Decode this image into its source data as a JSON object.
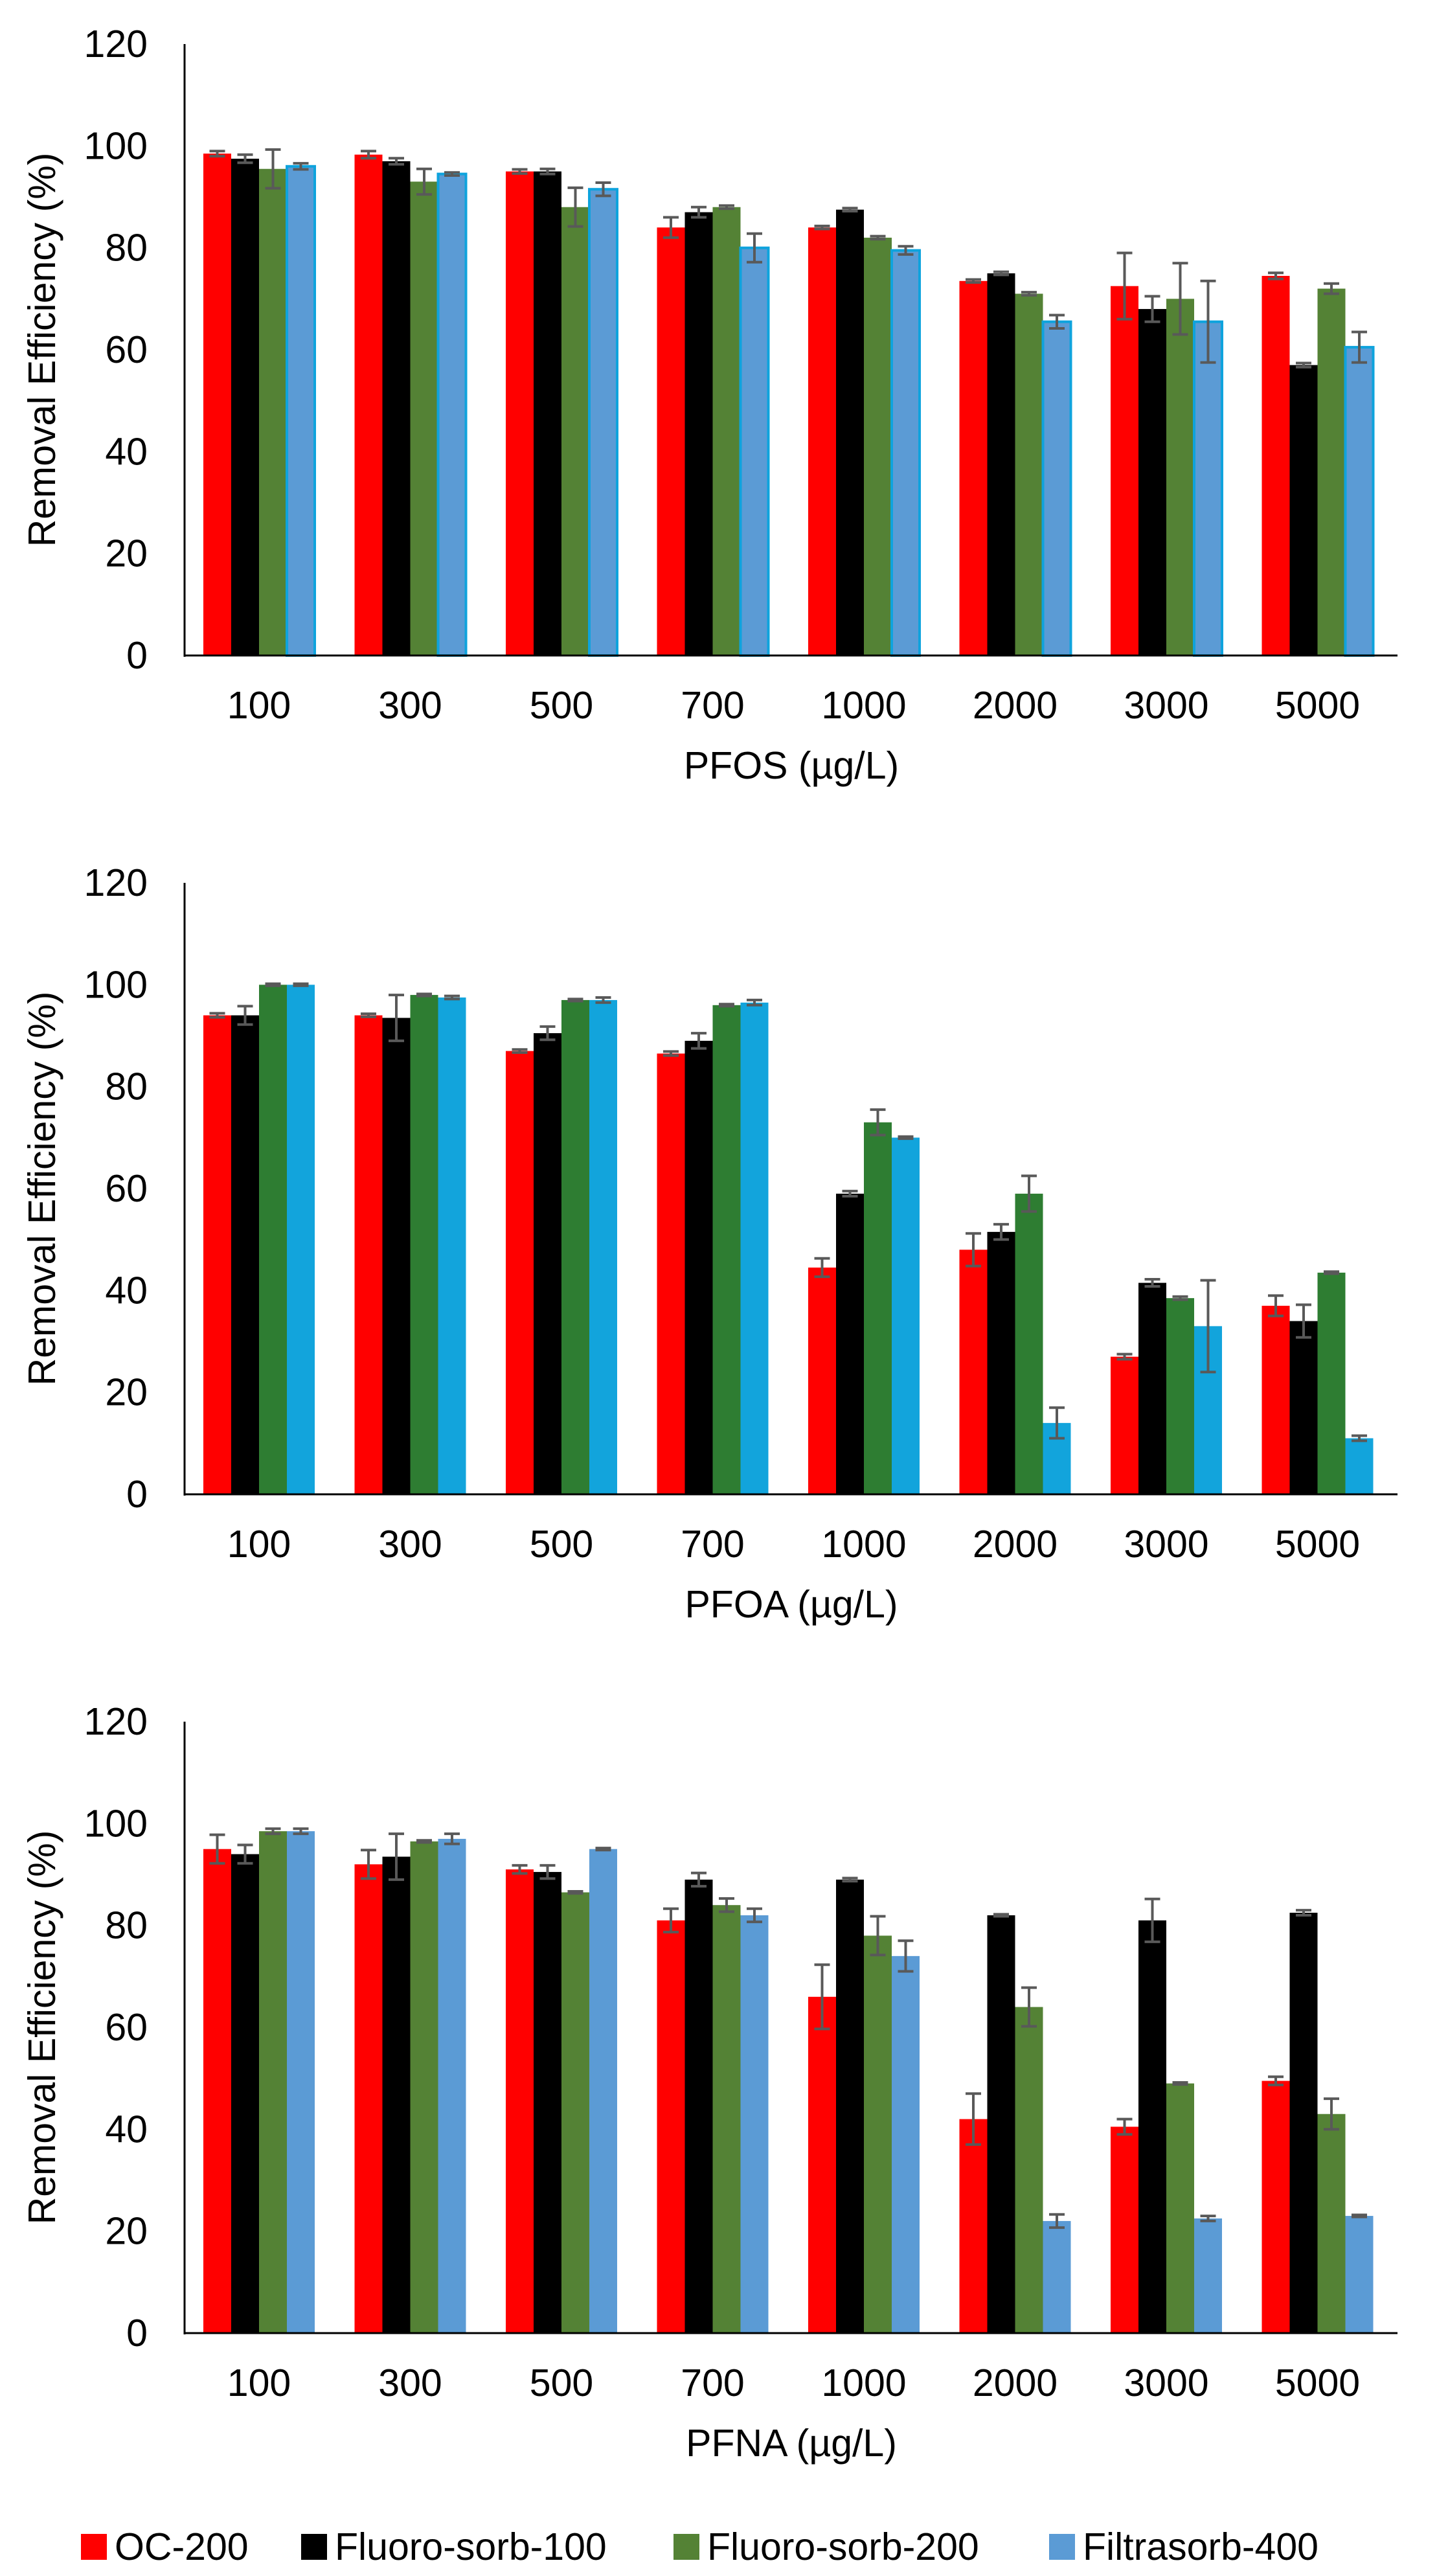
{
  "legend": [
    {
      "name": "OC-200",
      "color": "#ff0000"
    },
    {
      "name": "Fluoro-sorb-100",
      "color": "#000000"
    },
    {
      "name": "Fluoro-sorb-200",
      "color": "#548235"
    },
    {
      "name": "Filtrasorb-400",
      "color": "#5b9bd5"
    }
  ],
  "chart_data": [
    {
      "type": "bar",
      "title": "",
      "xlabel": "PFOS (µg/L)",
      "ylabel": "Removal Efficiency (%)",
      "ylim": [
        0,
        120
      ],
      "yticks": [
        "0",
        "20",
        "40",
        "60",
        "80",
        "100",
        "120"
      ],
      "categories": [
        "100",
        "300",
        "500",
        "700",
        "1000",
        "2000",
        "3000",
        "5000"
      ],
      "series": [
        {
          "name": "OC-200",
          "color": "#ff0000",
          "values": [
            98.5,
            98.3,
            95,
            84,
            84,
            73.5,
            72.5,
            74.5
          ],
          "errors": [
            0.5,
            0.7,
            0.4,
            2,
            0.3,
            0.3,
            6.5,
            0.6
          ]
        },
        {
          "name": "Fluoro-sorb-100",
          "color": "#000000",
          "values": [
            97.5,
            97,
            95,
            87,
            87.5,
            75,
            68,
            57
          ],
          "errors": [
            0.8,
            0.6,
            0.5,
            1,
            0.3,
            0.3,
            2.5,
            0.4
          ]
        },
        {
          "name": "Fluoro-sorb-200",
          "color": "#548235",
          "values": [
            95.5,
            93,
            88,
            88,
            82,
            71,
            70,
            72
          ],
          "errors": [
            3.8,
            2.5,
            3.8,
            0.3,
            0.3,
            0.3,
            7,
            1
          ]
        },
        {
          "name": "Filtrasorb-400",
          "color": "#5b9bd5",
          "outline": "#0ea3dd",
          "values": [
            96,
            94.5,
            91.5,
            80,
            79.5,
            65.5,
            65.5,
            60.5
          ],
          "errors": [
            0.6,
            0.3,
            1.3,
            2.8,
            0.8,
            1.3,
            8,
            3
          ]
        }
      ]
    },
    {
      "type": "bar",
      "title": "",
      "xlabel": "PFOA (µg/L)",
      "ylabel": "Removal Efficiency (%)",
      "ylim": [
        0,
        120
      ],
      "yticks": [
        "0",
        "20",
        "40",
        "60",
        "80",
        "100",
        "120"
      ],
      "categories": [
        "100",
        "300",
        "500",
        "700",
        "1000",
        "2000",
        "3000",
        "5000"
      ],
      "series": [
        {
          "name": "OC-200",
          "color": "#ff0000",
          "values": [
            94,
            94,
            87,
            86.5,
            44.5,
            48,
            27,
            37
          ],
          "errors": [
            0.4,
            0.3,
            0.3,
            0.4,
            1.8,
            3.2,
            0.5,
            2
          ]
        },
        {
          "name": "Fluoro-sorb-100",
          "color": "#000000",
          "values": [
            94,
            93.5,
            90.5,
            89,
            59,
            51.5,
            41.5,
            34
          ],
          "errors": [
            1.8,
            4.5,
            1.3,
            1.5,
            0.5,
            1.5,
            0.7,
            3.2
          ]
        },
        {
          "name": "Fluoro-sorb-200",
          "color": "#2e7d32",
          "values": [
            100,
            98,
            97,
            96,
            73,
            59,
            38.5,
            43.5
          ],
          "errors": [
            0.2,
            0.2,
            0.2,
            0.2,
            2.5,
            3.5,
            0.3,
            0.2
          ]
        },
        {
          "name": "Filtrasorb-400",
          "color": "#12a4dc",
          "values": [
            100,
            97.5,
            97,
            96.5,
            70,
            14,
            33,
            11
          ],
          "errors": [
            0.2,
            0.3,
            0.5,
            0.5,
            0.2,
            3,
            9,
            0.5
          ]
        }
      ]
    },
    {
      "type": "bar",
      "title": "",
      "xlabel": "PFNA (µg/L)",
      "ylabel": "Removal Efficiency (%)",
      "ylim": [
        0,
        120
      ],
      "yticks": [
        "0",
        "20",
        "40",
        "60",
        "80",
        "100",
        "120"
      ],
      "categories": [
        "100",
        "300",
        "500",
        "700",
        "1000",
        "2000",
        "3000",
        "5000"
      ],
      "series": [
        {
          "name": "OC-200",
          "color": "#ff0000",
          "values": [
            95,
            92,
            91,
            81,
            66,
            42,
            40.5,
            49.5
          ],
          "errors": [
            2.8,
            2.8,
            0.8,
            2.3,
            6.3,
            5,
            1.5,
            0.8
          ]
        },
        {
          "name": "Fluoro-sorb-100",
          "color": "#000000",
          "values": [
            94,
            93.5,
            90.5,
            89,
            89,
            82,
            81,
            82.5
          ],
          "errors": [
            1.8,
            4.5,
            1.3,
            1.3,
            0.3,
            0.2,
            4.2,
            0.5
          ]
        },
        {
          "name": "Fluoro-sorb-200",
          "color": "#548235",
          "values": [
            98.5,
            96.5,
            86.5,
            84,
            78,
            64,
            49,
            43
          ],
          "errors": [
            0.5,
            0.2,
            0.2,
            1.3,
            3.8,
            3.8,
            0.2,
            3
          ]
        },
        {
          "name": "Filtrasorb-400",
          "color": "#5b9bd5",
          "values": [
            98.5,
            97,
            95,
            82,
            74,
            22,
            22.5,
            23
          ],
          "errors": [
            0.5,
            1,
            0.2,
            1.3,
            3,
            1.3,
            0.5,
            0.2
          ]
        }
      ]
    }
  ]
}
